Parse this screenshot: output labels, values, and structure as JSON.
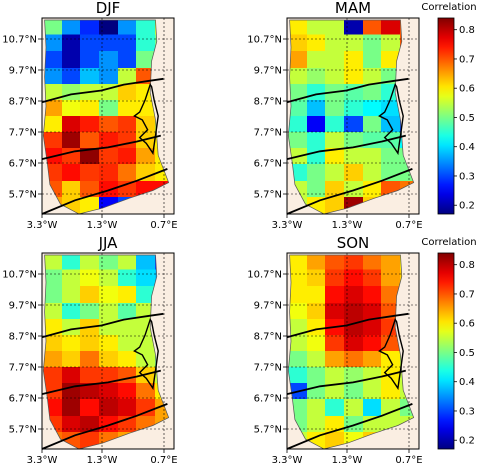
{
  "panels": [
    {
      "title": "DJF",
      "colorbar_label": "Correlation",
      "show_colorbar": true
    },
    {
      "title": "MAM",
      "colorbar_label": "",
      "show_colorbar": false
    },
    {
      "title": "JJA",
      "colorbar_label": "",
      "show_colorbar": false
    },
    {
      "title": "SON",
      "colorbar_label": "Correlation",
      "show_colorbar": true
    }
  ],
  "colorbar_label": "Correlation",
  "lat_ticks": [
    "10.7°N",
    "9.7°N",
    "8.7°N",
    "7.7°N",
    "6.7°N",
    "5.7°N"
  ],
  "lon_ticks": [
    "3.3°W",
    "1.3°W",
    "0.7°E"
  ],
  "colorbar": {
    "min": 0.17,
    "max": 0.84,
    "ticks": [
      0.2,
      0.3,
      0.4,
      0.5,
      0.6,
      0.7,
      0.8
    ],
    "colormap": "jet"
  },
  "colors": {
    "land": "#faeee2",
    "coast": "#000000"
  },
  "grid": {
    "lon_start": -3.3,
    "lat_start": 11.15,
    "cell_deg": 0.5,
    "cols": 7,
    "rows": 12
  },
  "cell_values": {
    "DJF": [
      [
        0.5,
        0.35,
        0.28,
        0.15,
        0.35,
        0.45,
        0.55
      ],
      [
        0.35,
        0.2,
        0.3,
        0.3,
        0.3,
        0.45,
        0.5
      ],
      [
        0.3,
        0.2,
        0.3,
        0.35,
        0.3,
        0.5,
        0.55
      ],
      [
        0.35,
        0.3,
        0.38,
        0.35,
        0.55,
        0.7,
        0.55
      ],
      [
        0.55,
        0.52,
        0.55,
        0.55,
        0.62,
        0.6,
        0.55
      ],
      [
        0.65,
        0.58,
        0.6,
        0.5,
        0.6,
        0.6,
        0.55
      ],
      [
        0.6,
        0.78,
        0.74,
        0.7,
        0.72,
        0.62,
        0.55
      ],
      [
        0.72,
        0.82,
        0.7,
        0.74,
        0.72,
        0.62,
        0.6
      ],
      [
        0.75,
        0.72,
        0.83,
        0.72,
        0.74,
        0.65,
        0.6
      ],
      [
        0.72,
        0.75,
        0.72,
        0.73,
        0.68,
        0.62,
        0.6
      ],
      [
        0.7,
        0.62,
        0.7,
        0.75,
        0.72,
        0.75,
        0.75
      ],
      [
        0.65,
        0.62,
        0.6,
        0.25,
        0.3,
        0.6,
        0.7
      ]
    ],
    "MAM": [
      [
        0.6,
        0.55,
        0.55,
        0.2,
        0.7,
        0.78,
        0.7
      ],
      [
        0.62,
        0.6,
        0.55,
        0.55,
        0.5,
        0.55,
        0.7
      ],
      [
        0.65,
        0.55,
        0.55,
        0.6,
        0.5,
        0.6,
        0.65
      ],
      [
        0.55,
        0.52,
        0.55,
        0.6,
        0.55,
        0.5,
        0.6
      ],
      [
        0.5,
        0.45,
        0.5,
        0.48,
        0.5,
        0.45,
        0.5
      ],
      [
        0.48,
        0.38,
        0.5,
        0.45,
        0.42,
        0.4,
        0.45
      ],
      [
        0.45,
        0.25,
        0.45,
        0.3,
        0.5,
        0.38,
        0.3
      ],
      [
        0.5,
        0.45,
        0.55,
        0.5,
        0.48,
        0.48,
        0.42
      ],
      [
        0.55,
        0.45,
        0.6,
        0.55,
        0.55,
        0.5,
        0.5
      ],
      [
        0.45,
        0.5,
        0.55,
        0.62,
        0.55,
        0.5,
        0.5
      ],
      [
        0.55,
        0.5,
        0.62,
        0.55,
        0.6,
        0.7,
        0.68
      ],
      [
        0.55,
        0.6,
        0.62,
        0.82,
        0.62,
        0.55,
        0.7
      ]
    ],
    "JJA": [
      [
        0.55,
        0.45,
        0.55,
        0.5,
        0.55,
        0.38,
        0.3
      ],
      [
        0.5,
        0.55,
        0.58,
        0.55,
        0.45,
        0.4,
        0.38
      ],
      [
        0.5,
        0.55,
        0.62,
        0.58,
        0.6,
        0.45,
        0.17
      ],
      [
        0.55,
        0.45,
        0.5,
        0.55,
        0.48,
        0.55,
        0.35
      ],
      [
        0.6,
        0.55,
        0.62,
        0.55,
        0.55,
        0.55,
        0.4
      ],
      [
        0.62,
        0.6,
        0.62,
        0.6,
        0.55,
        0.55,
        0.45
      ],
      [
        0.65,
        0.62,
        0.68,
        0.62,
        0.6,
        0.55,
        0.5
      ],
      [
        0.72,
        0.78,
        0.72,
        0.72,
        0.7,
        0.62,
        0.55
      ],
      [
        0.72,
        0.82,
        0.8,
        0.78,
        0.75,
        0.68,
        0.6
      ],
      [
        0.75,
        0.82,
        0.75,
        0.8,
        0.78,
        0.72,
        0.65
      ],
      [
        0.72,
        0.78,
        0.8,
        0.75,
        0.72,
        0.68,
        0.65
      ],
      [
        0.68,
        0.7,
        0.72,
        0.68,
        0.65,
        0.62,
        0.6
      ]
    ],
    "SON": [
      [
        0.6,
        0.65,
        0.7,
        0.72,
        0.68,
        0.65,
        0.6
      ],
      [
        0.6,
        0.62,
        0.72,
        0.75,
        0.72,
        0.65,
        0.62
      ],
      [
        0.6,
        0.6,
        0.75,
        0.78,
        0.75,
        0.68,
        0.6
      ],
      [
        0.58,
        0.62,
        0.78,
        0.8,
        0.78,
        0.7,
        0.65
      ],
      [
        0.55,
        0.6,
        0.75,
        0.8,
        0.78,
        0.72,
        0.65
      ],
      [
        0.55,
        0.58,
        0.72,
        0.78,
        0.75,
        0.7,
        0.62
      ],
      [
        0.5,
        0.55,
        0.65,
        0.68,
        0.65,
        0.6,
        0.55
      ],
      [
        0.45,
        0.5,
        0.55,
        0.52,
        0.55,
        0.6,
        0.55
      ],
      [
        0.3,
        0.5,
        0.55,
        0.5,
        0.55,
        0.6,
        0.55
      ],
      [
        0.5,
        0.55,
        0.45,
        0.55,
        0.4,
        0.55,
        0.5
      ],
      [
        0.5,
        0.55,
        0.6,
        0.5,
        0.55,
        0.55,
        0.55
      ],
      [
        0.55,
        0.6,
        0.62,
        0.58,
        0.62,
        0.6,
        0.6
      ]
    ]
  }
}
